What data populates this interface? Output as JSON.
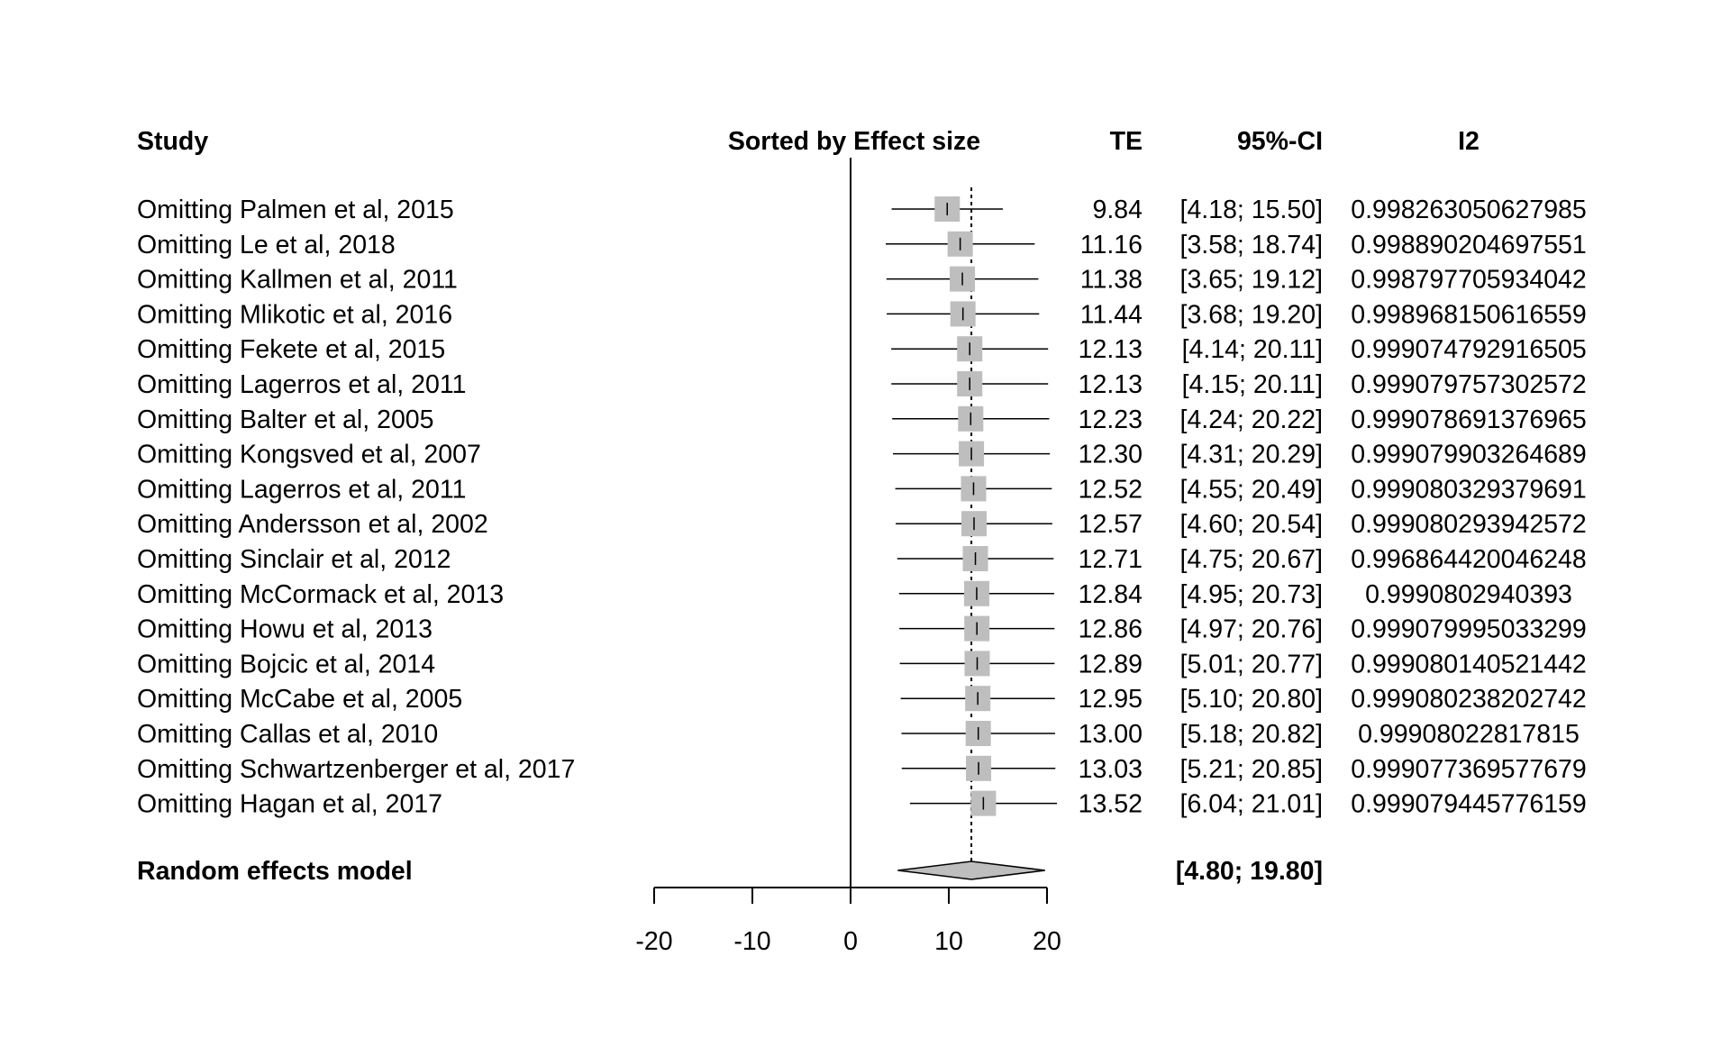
{
  "headers": {
    "study": "Study",
    "sort": "Sorted by Effect size",
    "te": "TE",
    "ci": "95%-CI",
    "i2": "I2"
  },
  "pooled": {
    "label": "Random effects model",
    "ci_text": "[4.80; 19.80]",
    "estimate": 12.3,
    "lower": 4.8,
    "upper": 19.8
  },
  "colors": {
    "box": "#bebebe",
    "diamond": "#bebebe",
    "line": "#000000",
    "text": "#000000"
  },
  "chart_data": {
    "type": "forest",
    "x_ticks": [
      "-20",
      "-10",
      "0",
      "10",
      "20"
    ],
    "xlim": [
      -20,
      20
    ],
    "reference_line": 0,
    "pooled_line": 12.3,
    "studies": [
      {
        "label": "Omitting Palmen et al,  2015",
        "te": "9.84",
        "ci": "[4.18; 15.50]",
        "i2": "0.998263050627985",
        "est": 9.84,
        "lo": 4.18,
        "hi": 15.5
      },
      {
        "label": "Omitting Le et al, 2018",
        "te": "11.16",
        "ci": "[3.58; 18.74]",
        "i2": "0.998890204697551",
        "est": 11.16,
        "lo": 3.58,
        "hi": 18.74
      },
      {
        "label": "Omitting Kallmen et al, 2011",
        "te": "11.38",
        "ci": "[3.65; 19.12]",
        "i2": "0.998797705934042",
        "est": 11.38,
        "lo": 3.65,
        "hi": 19.12
      },
      {
        "label": "Omitting Mlikotic et al, 2016",
        "te": "11.44",
        "ci": "[3.68; 19.20]",
        "i2": "0.998968150616559",
        "est": 11.44,
        "lo": 3.68,
        "hi": 19.2
      },
      {
        "label": "Omitting Fekete et al, 2015",
        "te": "12.13",
        "ci": "[4.14; 20.11]",
        "i2": "0.999074792916505",
        "est": 12.13,
        "lo": 4.14,
        "hi": 20.11
      },
      {
        "label": "Omitting Lagerros et al, 2011",
        "te": "12.13",
        "ci": "[4.15; 20.11]",
        "i2": "0.999079757302572",
        "est": 12.13,
        "lo": 4.15,
        "hi": 20.11
      },
      {
        "label": "Omitting Balter et al, 2005",
        "te": "12.23",
        "ci": "[4.24; 20.22]",
        "i2": "0.999078691376965",
        "est": 12.23,
        "lo": 4.24,
        "hi": 20.22
      },
      {
        "label": "Omitting Kongsved et al, 2007",
        "te": "12.30",
        "ci": "[4.31; 20.29]",
        "i2": "0.999079903264689",
        "est": 12.3,
        "lo": 4.31,
        "hi": 20.29
      },
      {
        "label": "Omitting Lagerros et al, 2011",
        "te": "12.52",
        "ci": "[4.55; 20.49]",
        "i2": "0.999080329379691",
        "est": 12.52,
        "lo": 4.55,
        "hi": 20.49
      },
      {
        "label": "Omitting Andersson et al, 2002",
        "te": "12.57",
        "ci": "[4.60; 20.54]",
        "i2": "0.999080293942572",
        "est": 12.57,
        "lo": 4.6,
        "hi": 20.54
      },
      {
        "label": "Omitting Sinclair et al, 2012",
        "te": "12.71",
        "ci": "[4.75; 20.67]",
        "i2": "0.996864420046248",
        "est": 12.71,
        "lo": 4.75,
        "hi": 20.67
      },
      {
        "label": "Omitting McCormack et al, 2013",
        "te": "12.84",
        "ci": "[4.95; 20.73]",
        "i2": "0.9990802940393",
        "est": 12.84,
        "lo": 4.95,
        "hi": 20.73
      },
      {
        "label": "Omitting Howu et al, 2013",
        "te": "12.86",
        "ci": "[4.97; 20.76]",
        "i2": "0.999079995033299",
        "est": 12.86,
        "lo": 4.97,
        "hi": 20.76
      },
      {
        "label": "Omitting Bojcic et al, 2014",
        "te": "12.89",
        "ci": "[5.01; 20.77]",
        "i2": "0.999080140521442",
        "est": 12.89,
        "lo": 5.01,
        "hi": 20.77
      },
      {
        "label": "Omitting McCabe et al, 2005",
        "te": "12.95",
        "ci": "[5.10; 20.80]",
        "i2": "0.999080238202742",
        "est": 12.95,
        "lo": 5.1,
        "hi": 20.8
      },
      {
        "label": "Omitting Callas et al, 2010",
        "te": "13.00",
        "ci": "[5.18; 20.82]",
        "i2": "0.99908022817815",
        "est": 13.0,
        "lo": 5.18,
        "hi": 20.82
      },
      {
        "label": "Omitting Schwartzenberger et al, 2017",
        "te": "13.03",
        "ci": "[5.21; 20.85]",
        "i2": "0.999077369577679",
        "est": 13.03,
        "lo": 5.21,
        "hi": 20.85
      },
      {
        "label": "Omitting Hagan et al, 2017",
        "te": "13.52",
        "ci": "[6.04; 21.01]",
        "i2": "0.999079445776159",
        "est": 13.52,
        "lo": 6.04,
        "hi": 21.01
      }
    ]
  }
}
